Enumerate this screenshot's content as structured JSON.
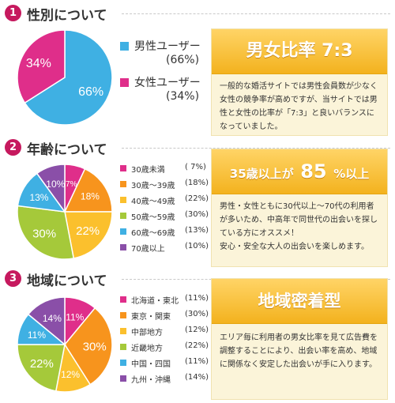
{
  "sections": [
    {
      "number": "1",
      "title": "性別について",
      "banner": "男女比率 7:3",
      "description": [
        "一般的な婚活サイトでは男性会員数が少なく女性の競争率が高めですが、当サイトでは男性と女性の比率が「7:3」と良いバランスになっていました。"
      ]
    },
    {
      "number": "2",
      "title": "年齢について",
      "banner_prefix": "35歳以上が",
      "banner_number": "85",
      "banner_suffix": "%以上",
      "description": [
        "男性・女性ともに30代以上〜70代の利用者が多いため、中高年で同世代の出会いを探している方にオススメ！",
        "安心・安全な大人の出会いを楽しめます。"
      ]
    },
    {
      "number": "3",
      "title": "地域について",
      "banner": "地域密着型",
      "description": [
        "エリア毎に利用者の男女比率を見て広告費を調整することにより、出会い率を高め、地域に関係なく安定した出会いが手に入ります。"
      ]
    }
  ],
  "chart_data": [
    {
      "type": "pie",
      "title": "",
      "labels": [
        "男性ユーザー",
        "女性ユーザー"
      ],
      "values": [
        66,
        34
      ],
      "value_labels": [
        "(66%)",
        "(34%)"
      ],
      "slice_labels": [
        "66%",
        "34%"
      ],
      "colors": [
        "#3fb0e3",
        "#df2e8a"
      ]
    },
    {
      "type": "pie",
      "title": "",
      "labels": [
        "30歳未満",
        "30歳〜39歳",
        "40歳〜49歳",
        "50歳〜59歳",
        "60歳〜69歳",
        "70歳以上"
      ],
      "values": [
        7,
        18,
        22,
        30,
        13,
        10
      ],
      "value_labels": [
        "( 7%)",
        "(18%)",
        "(22%)",
        "(30%)",
        "(13%)",
        "(10%)"
      ],
      "slice_labels": [
        "7%",
        "18%",
        "22%",
        "30%",
        "13%",
        "10%"
      ],
      "colors": [
        "#df2e8a",
        "#f7941d",
        "#fbc02d",
        "#a5c93a",
        "#3fb0e3",
        "#8a4fa8"
      ]
    },
    {
      "type": "pie",
      "title": "",
      "labels": [
        "北海道・東北",
        "東京・関東",
        "中部地方",
        "近畿地方",
        "中国・四国",
        "九州・沖縄"
      ],
      "values": [
        11,
        30,
        12,
        22,
        11,
        14
      ],
      "value_labels": [
        "(11%)",
        "(30%)",
        "(12%)",
        "(22%)",
        "(11%)",
        "(14%)"
      ],
      "slice_labels": [
        "11%",
        "30%",
        "12%",
        "22%",
        "11%",
        "14%"
      ],
      "colors": [
        "#df2e8a",
        "#f7941d",
        "#fbc02d",
        "#a5c93a",
        "#3fb0e3",
        "#8a4fa8"
      ]
    }
  ]
}
